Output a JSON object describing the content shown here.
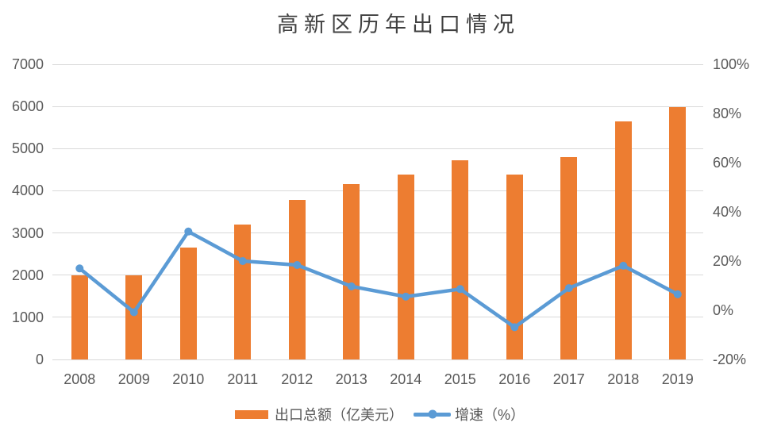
{
  "chart_data": {
    "type": "combo-bar-line",
    "title": "高新区历年出口情况",
    "categories": [
      "2008",
      "2009",
      "2010",
      "2011",
      "2012",
      "2013",
      "2014",
      "2015",
      "2016",
      "2017",
      "2018",
      "2019"
    ],
    "series": [
      {
        "name": "出口总额（亿美元）",
        "type": "bar",
        "axis": "left",
        "values": [
          2000,
          2000,
          2650,
          3190,
          3780,
          4150,
          4380,
          4730,
          4390,
          4790,
          5640,
          5990
        ]
      },
      {
        "name": "增速（%）",
        "type": "line",
        "axis": "right",
        "values": [
          17.0,
          -0.8,
          32.0,
          20.0,
          18.4,
          9.7,
          5.5,
          8.6,
          -6.9,
          9.0,
          18.1,
          6.5
        ]
      }
    ],
    "left_axis": {
      "min": 0,
      "max": 7000,
      "step": 1000,
      "tick_labels": [
        "0",
        "1000",
        "2000",
        "3000",
        "4000",
        "5000",
        "6000",
        "7000"
      ]
    },
    "right_axis": {
      "min": -20,
      "max": 100,
      "step": 20,
      "tick_labels": [
        "-20%",
        "0%",
        "20%",
        "40%",
        "60%",
        "80%",
        "100%"
      ]
    },
    "grid": true,
    "legend_position": "bottom",
    "colors": {
      "bar": "#ED7D31",
      "line": "#5B9BD5",
      "gridline": "#D9D9D9",
      "axis_text": "#595959",
      "title_text": "#404040",
      "background": "#FFFFFF"
    }
  }
}
